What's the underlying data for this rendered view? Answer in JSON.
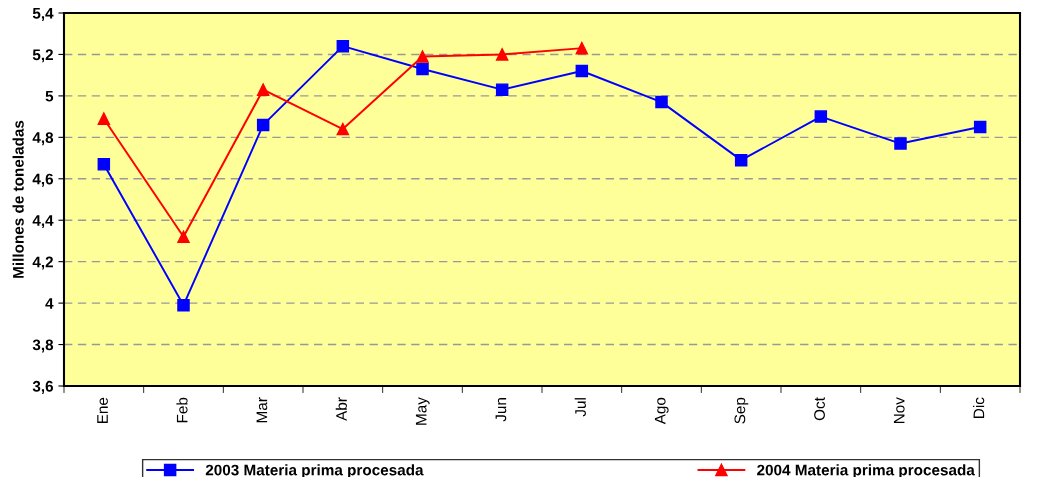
{
  "chart_data": {
    "type": "line",
    "ylabel": "Millones de toneladas",
    "categories": [
      "Ene",
      "Feb",
      "Mar",
      "Abr",
      "May",
      "Jun",
      "Jul",
      "Ago",
      "Sep",
      "Oct",
      "Nov",
      "Dic"
    ],
    "series": [
      {
        "name": "2003 Materia prima procesada",
        "color": "#0000ff",
        "marker": "square",
        "values": [
          4.67,
          3.99,
          4.86,
          5.24,
          5.13,
          5.03,
          5.12,
          4.97,
          4.69,
          4.9,
          4.77,
          4.85
        ]
      },
      {
        "name": "2004 Materia prima procesada",
        "color": "#ff0000",
        "marker": "triangle",
        "values": [
          4.89,
          4.32,
          5.03,
          4.84,
          5.19,
          5.2,
          5.23,
          null,
          null,
          null,
          null,
          null
        ]
      }
    ],
    "ylim": [
      3.6,
      5.4
    ],
    "yticks": [
      {
        "value": 3.6,
        "label": "3,6"
      },
      {
        "value": 3.8,
        "label": "3,8"
      },
      {
        "value": 4,
        "label": "4"
      },
      {
        "value": 4.2,
        "label": "4,2"
      },
      {
        "value": 4.4,
        "label": "4,4"
      },
      {
        "value": 4.6,
        "label": "4,6"
      },
      {
        "value": 4.8,
        "label": "4,8"
      },
      {
        "value": 5,
        "label": "5"
      },
      {
        "value": 5.2,
        "label": "5,2"
      },
      {
        "value": 5.4,
        "label": "5,4"
      }
    ],
    "grid": "y",
    "legend": "bottom",
    "line_style": "solid"
  }
}
